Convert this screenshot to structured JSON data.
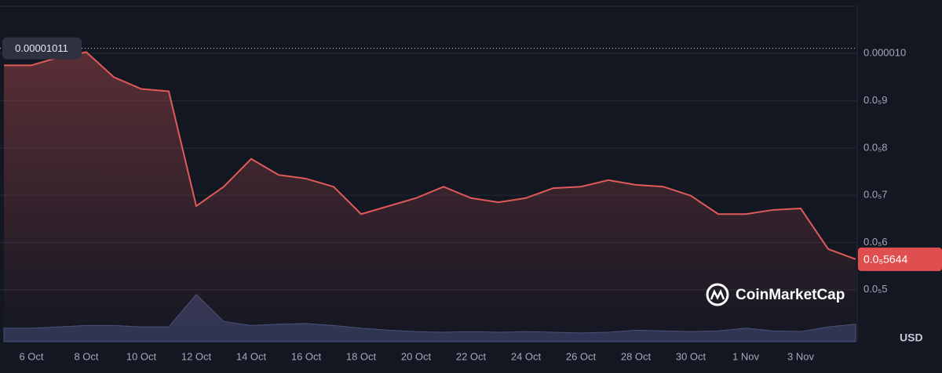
{
  "chart_data": {
    "type": "line",
    "x": [
      "5 Oct",
      "6 Oct",
      "7 Oct",
      "8 Oct",
      "9 Oct",
      "10 Oct",
      "11 Oct",
      "12 Oct",
      "13 Oct",
      "14 Oct",
      "15 Oct",
      "16 Oct",
      "17 Oct",
      "18 Oct",
      "19 Oct",
      "20 Oct",
      "21 Oct",
      "22 Oct",
      "23 Oct",
      "24 Oct",
      "25 Oct",
      "26 Oct",
      "27 Oct",
      "28 Oct",
      "29 Oct",
      "30 Oct",
      "31 Oct",
      "1 Nov",
      "2 Nov",
      "3 Nov",
      "4 Nov",
      "5 Nov"
    ],
    "series": [
      {
        "color": "#e05a5a",
        "values": [
          9.75e-06,
          9.75e-06,
          9.92e-06,
          1.003e-05,
          9.5e-06,
          9.25e-06,
          9.2e-06,
          6.77e-06,
          7.18e-06,
          7.77e-06,
          7.43e-06,
          7.35e-06,
          7.18e-06,
          6.6e-06,
          6.77e-06,
          6.94e-06,
          7.18e-06,
          6.94e-06,
          6.85e-06,
          6.94e-06,
          7.15e-06,
          7.18e-06,
          7.32e-06,
          7.22e-06,
          7.18e-06,
          6.99e-06,
          6.6e-06,
          6.6e-06,
          6.69e-06,
          6.72e-06,
          5.86e-06,
          5.644e-06
        ]
      }
    ],
    "volume": {
      "color": "#2e3552",
      "values": [
        20,
        20,
        22,
        24,
        24,
        22,
        22,
        70,
        30,
        24,
        26,
        27,
        24,
        20,
        17,
        15,
        14,
        15,
        14,
        15,
        14,
        13,
        14,
        17,
        16,
        15,
        16,
        20,
        16,
        15,
        22,
        26
      ],
      "ylim": [
        0,
        100
      ]
    },
    "ylim": [
      3.9e-06,
      1.1e-05
    ],
    "yticks": [
      {
        "value": 1e-05,
        "label": "0.000010"
      },
      {
        "value": 9e-06,
        "label": "0.0₅9"
      },
      {
        "value": 8e-06,
        "label": "0.0₅8"
      },
      {
        "value": 7e-06,
        "label": "0.0₅7"
      },
      {
        "value": 6e-06,
        "label": "0.0₅6"
      },
      {
        "value": 5e-06,
        "label": "0.0₅5"
      }
    ],
    "xticks": [
      "6 Oct",
      "8 Oct",
      "10 Oct",
      "12 Oct",
      "14 Oct",
      "16 Oct",
      "18 Oct",
      "20 Oct",
      "22 Oct",
      "24 Oct",
      "26 Oct",
      "28 Oct",
      "30 Oct",
      "1 Nov",
      "3 Nov"
    ],
    "grid": true,
    "crosshair": 1.011e-05,
    "last_price": {
      "value": 5.644e-06,
      "label": "0.0₅5644"
    },
    "currency": "USD",
    "watermark": "CoinMarketCap"
  }
}
